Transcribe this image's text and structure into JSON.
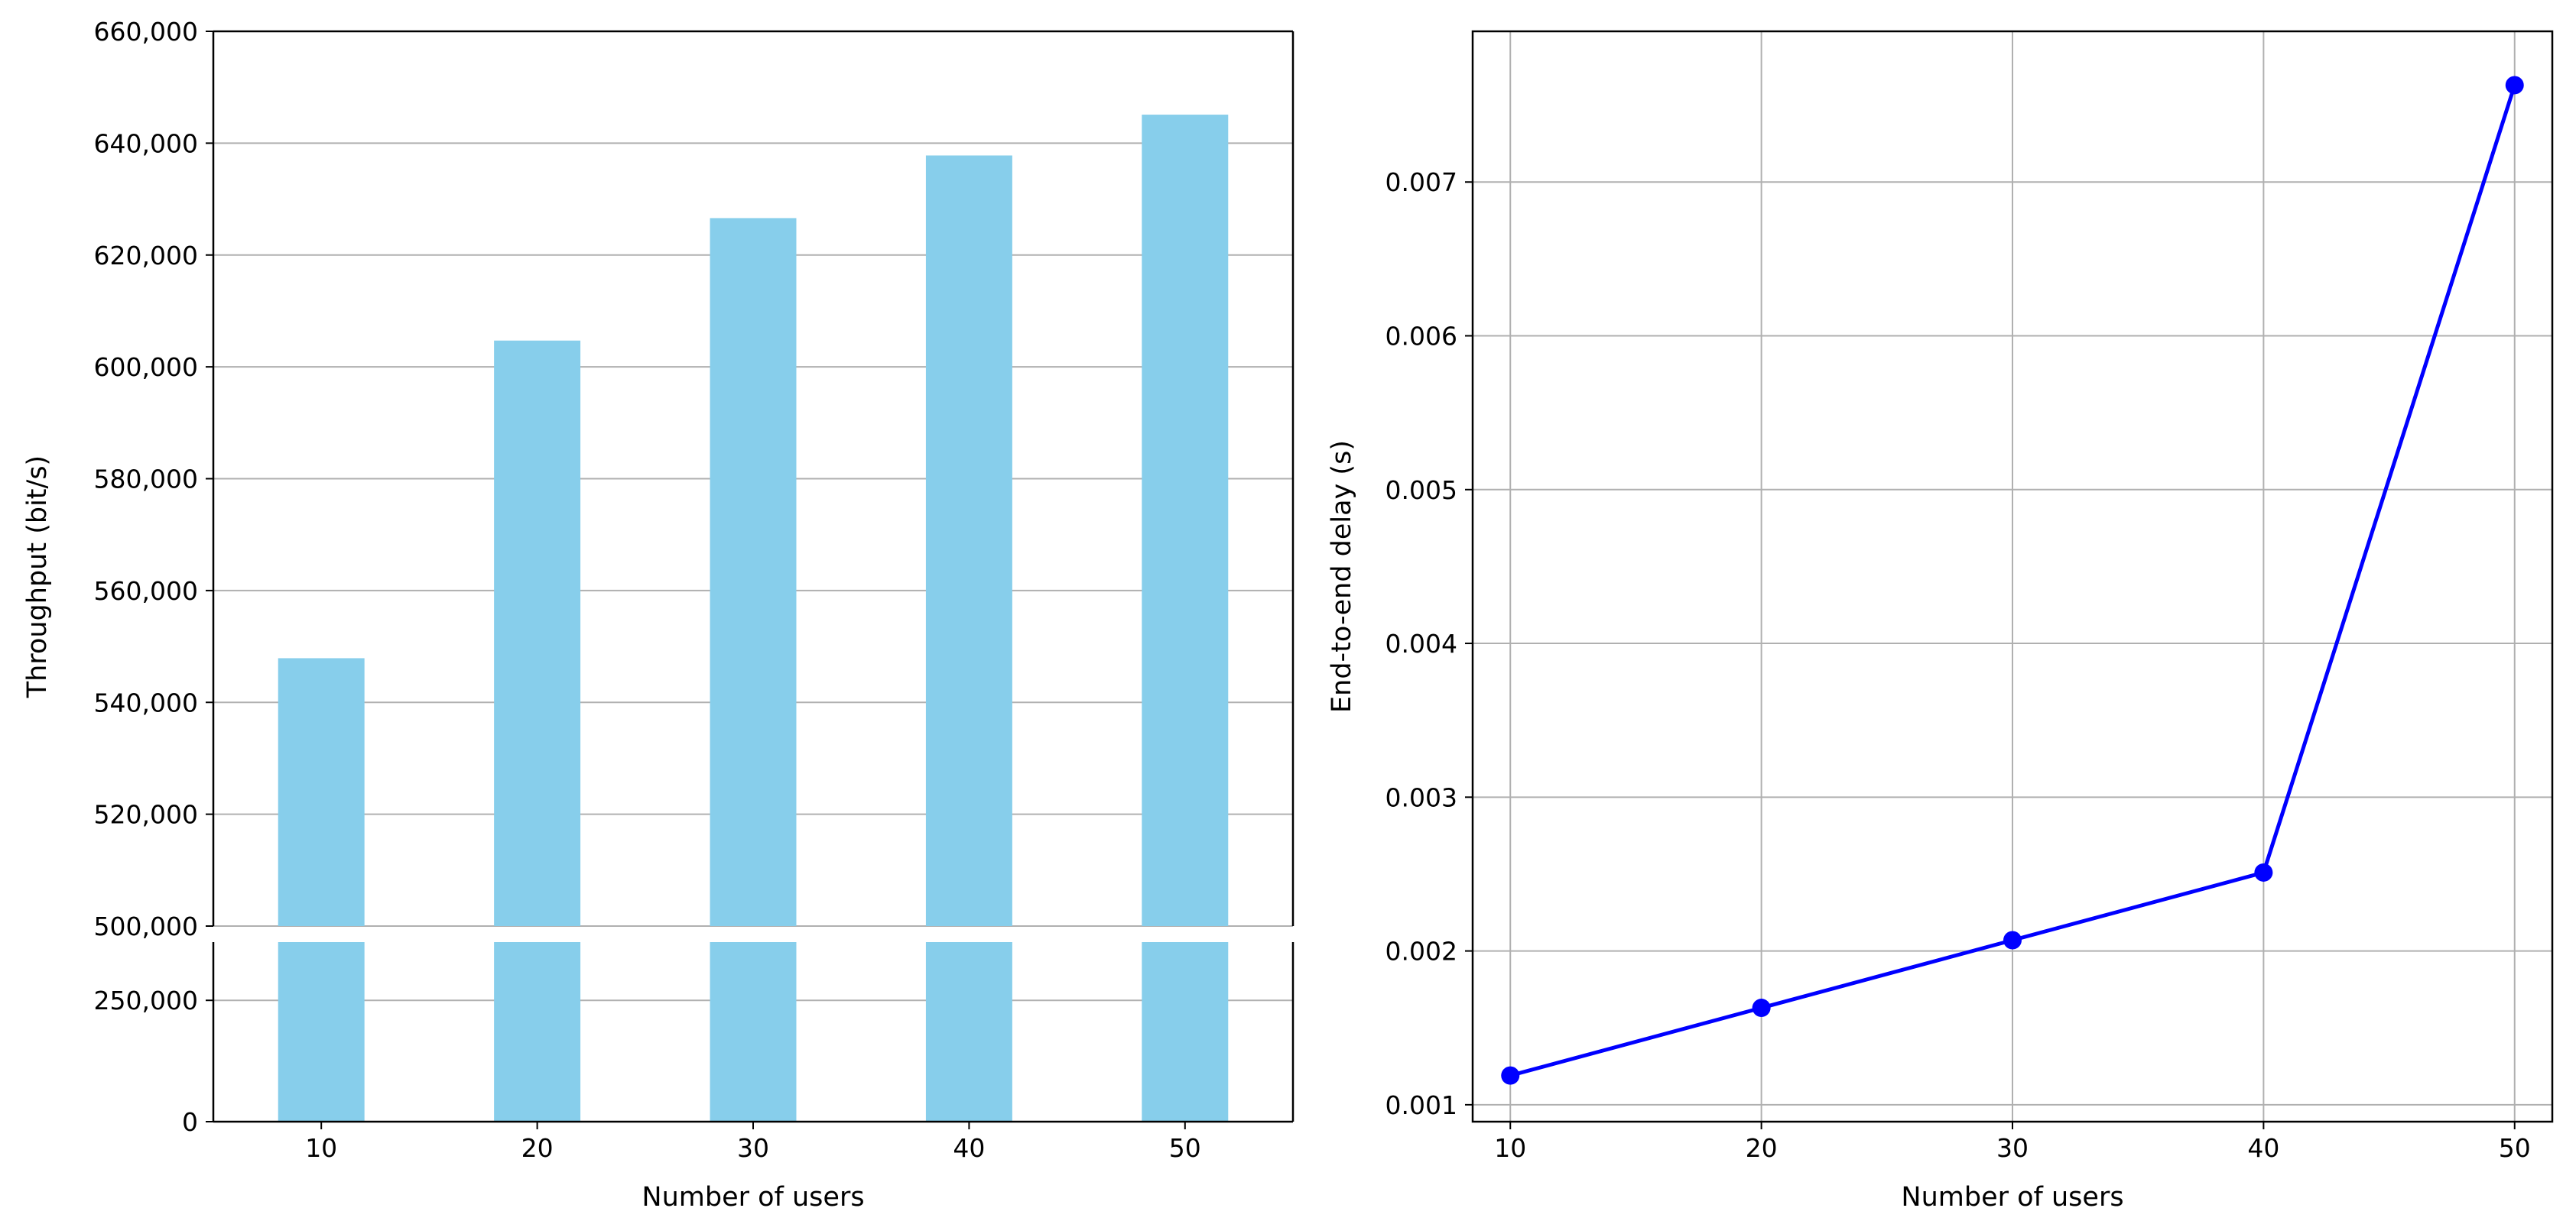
{
  "chart_data": [
    {
      "type": "bar",
      "categories": [
        "10",
        "20",
        "30",
        "40",
        "50"
      ],
      "values": [
        547900,
        604700,
        626600,
        637800,
        645100
      ],
      "xlabel": "Number of users",
      "ylabel": "Throughput (bit/s)",
      "broken_axis": true,
      "ylim_lower": [
        0,
        370000
      ],
      "ylim_upper": [
        500000,
        660000
      ],
      "yticks_lower": [
        0,
        250000
      ],
      "yticks_lower_labels": [
        "0",
        "250,000"
      ],
      "yticks_upper": [
        500000,
        520000,
        540000,
        560000,
        580000,
        600000,
        620000,
        640000,
        660000
      ],
      "yticks_upper_labels": [
        "500,000",
        "520,000",
        "540,000",
        "560,000",
        "580,000",
        "600,000",
        "620,000",
        "640,000",
        "660,000"
      ],
      "grid": "y",
      "bar_color": "#87ceeb"
    },
    {
      "type": "line",
      "x": [
        10,
        20,
        30,
        40,
        50
      ],
      "y": [
        0.00119,
        0.00163,
        0.00207,
        0.00251,
        0.00763
      ],
      "xlabel": "Number of users",
      "ylabel": "End-to-end delay (s)",
      "xlim": [
        8.5,
        51.5
      ],
      "ylim": [
        0.00089,
        0.00798
      ],
      "xticks": [
        10,
        20,
        30,
        40,
        50
      ],
      "xtick_labels": [
        "10",
        "20",
        "30",
        "40",
        "50"
      ],
      "yticks": [
        0.001,
        0.002,
        0.003,
        0.004,
        0.005,
        0.006,
        0.007
      ],
      "ytick_labels": [
        "0.001",
        "0.002",
        "0.003",
        "0.004",
        "0.005",
        "0.006",
        "0.007"
      ],
      "grid": "both",
      "line_color": "#0000ff",
      "marker": "circle"
    }
  ]
}
